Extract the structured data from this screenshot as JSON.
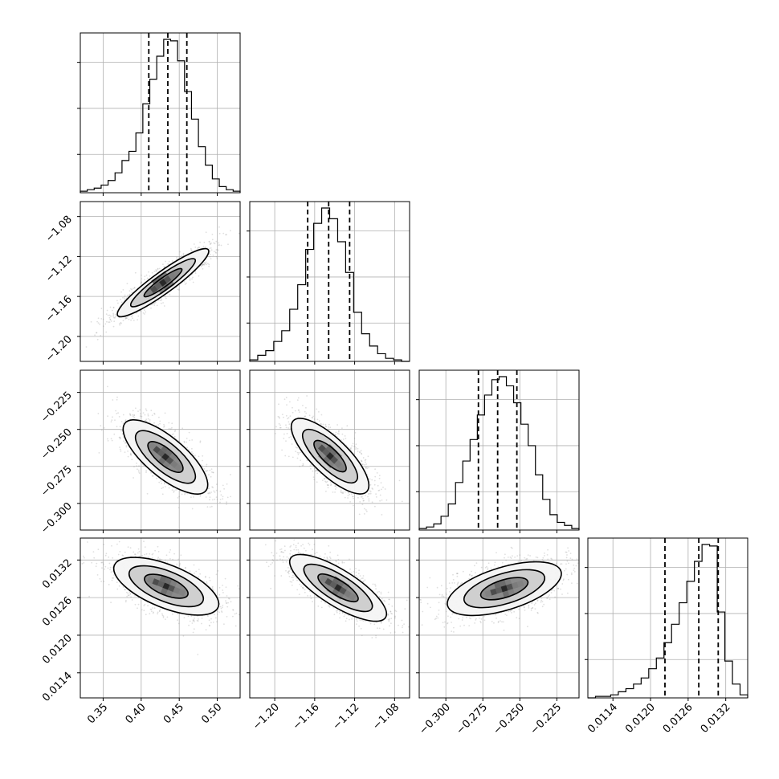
{
  "chart_data": {
    "type": "corner",
    "grid": true,
    "params": [
      {
        "range": [
          0.32,
          0.53
        ],
        "ticks": [
          0.35,
          0.4,
          0.45,
          0.5
        ],
        "tick_labels": [
          "0.35",
          "0.40",
          "0.45",
          "0.50"
        ],
        "quantiles": [
          0.41,
          0.435,
          0.46
        ],
        "hist_values": [
          1,
          2,
          3,
          5,
          8,
          13,
          21,
          27,
          39,
          58,
          74,
          89,
          100,
          99,
          86,
          66,
          48,
          30,
          18,
          9,
          4,
          2,
          1
        ]
      },
      {
        "range": [
          -1.225,
          -1.065
        ],
        "ticks": [
          -1.2,
          -1.16,
          -1.12,
          -1.08
        ],
        "tick_labels": [
          "−1.20",
          "−1.16",
          "−1.12",
          "−1.08"
        ],
        "quantiles": [
          -1.167,
          -1.146,
          -1.125
        ],
        "hist_values": [
          1,
          4,
          7,
          13,
          20,
          34,
          50,
          73,
          90,
          100,
          93,
          78,
          58,
          32,
          18,
          10,
          5,
          2,
          1,
          0
        ]
      },
      {
        "range": [
          -0.318,
          -0.21
        ],
        "ticks": [
          -0.3,
          -0.275,
          -0.25,
          -0.225
        ],
        "tick_labels": [
          "−0.300",
          "−0.275",
          "−0.250",
          "−0.225"
        ],
        "quantiles": [
          -0.278,
          -0.265,
          -0.252
        ],
        "hist_values": [
          1,
          2,
          4,
          9,
          17,
          31,
          45,
          59,
          75,
          88,
          98,
          100,
          94,
          83,
          69,
          55,
          36,
          20,
          10,
          5,
          3,
          1
        ]
      },
      {
        "range": [
          0.011,
          0.01355
        ],
        "ticks": [
          0.0114,
          0.012,
          0.0126,
          0.0132
        ],
        "tick_labels": [
          "0.0114",
          "0.0120",
          "0.0126",
          "0.0132"
        ],
        "quantiles": [
          0.01223,
          0.01277,
          0.01308
        ],
        "hist_values": [
          0,
          1,
          1,
          2,
          4,
          6,
          9,
          13,
          19,
          26,
          36,
          48,
          62,
          76,
          89,
          100,
          99,
          56,
          24,
          9,
          2
        ]
      }
    ]
  }
}
